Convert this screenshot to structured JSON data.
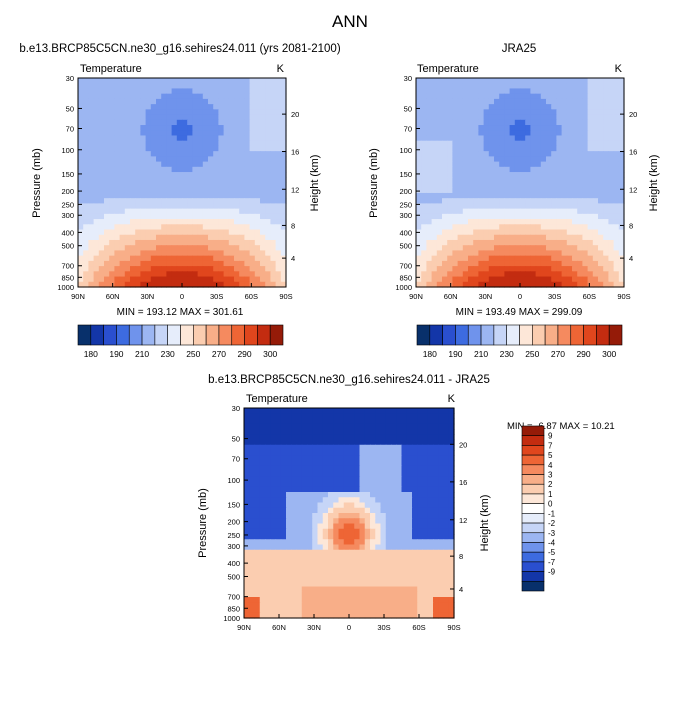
{
  "page_title": "ANN",
  "chart_data": [
    {
      "type": "heatmap",
      "title": "b.e13.BRCP85C5CN.ne30_g16.sehires24.011 (yrs 2081-2100)",
      "variable": "Temperature",
      "units": "K",
      "xlabel": "",
      "ylabel": "Pressure (mb)",
      "y2label": "Height (km)",
      "x_ticks": [
        "90N",
        "60N",
        "30N",
        "0",
        "30S",
        "60S",
        "90S"
      ],
      "x_range": [
        90,
        -90
      ],
      "pressure_ticks": [
        30,
        50,
        70,
        100,
        150,
        200,
        250,
        300,
        400,
        500,
        700,
        850,
        1000
      ],
      "height_ticks": [
        4,
        8,
        12,
        16,
        20
      ],
      "stats": "MIN = 193.12  MAX = 301.61",
      "colorbar_labels": [
        "180",
        "190",
        "210",
        "230",
        "250",
        "270",
        "290",
        "300"
      ],
      "colorbar_colors": [
        "#08306b",
        "#1336a8",
        "#2a4fcf",
        "#3d6be0",
        "#6f93ec",
        "#9cb6f2",
        "#c6d5f7",
        "#e6edfb",
        "#fde7d8",
        "#fbcdb0",
        "#f8ae88",
        "#f58a5f",
        "#ee6535",
        "#e0461d",
        "#c32c10",
        "#951b08"
      ],
      "field_colors": [
        "#1336a8",
        "#3d6be0",
        "#6f93ec",
        "#9cb6f2",
        "#c6d5f7",
        "#e6edfb",
        "#fde7d8",
        "#fbcdb0",
        "#f8ae88",
        "#f58a5f",
        "#ee6535",
        "#e0461d",
        "#c32c10"
      ]
    },
    {
      "type": "heatmap",
      "title": "JRA25",
      "variable": "Temperature",
      "units": "K",
      "xlabel": "",
      "ylabel": "Pressure (mb)",
      "y2label": "Height (km)",
      "x_ticks": [
        "90N",
        "60N",
        "30N",
        "0",
        "30S",
        "60S",
        "90S"
      ],
      "x_range": [
        90,
        -90
      ],
      "pressure_ticks": [
        30,
        50,
        70,
        100,
        150,
        200,
        250,
        300,
        400,
        500,
        700,
        850,
        1000
      ],
      "height_ticks": [
        4,
        8,
        12,
        16,
        20
      ],
      "stats": "MIN = 193.49  MAX = 299.09",
      "colorbar_labels": [
        "180",
        "190",
        "210",
        "230",
        "250",
        "270",
        "290",
        "300"
      ],
      "colorbar_colors": [
        "#08306b",
        "#1336a8",
        "#2a4fcf",
        "#3d6be0",
        "#6f93ec",
        "#9cb6f2",
        "#c6d5f7",
        "#e6edfb",
        "#fde7d8",
        "#fbcdb0",
        "#f8ae88",
        "#f58a5f",
        "#ee6535",
        "#e0461d",
        "#c32c10",
        "#951b08"
      ],
      "field_colors": [
        "#1336a8",
        "#3d6be0",
        "#6f93ec",
        "#9cb6f2",
        "#c6d5f7",
        "#e6edfb",
        "#fde7d8",
        "#fbcdb0",
        "#f8ae88",
        "#f58a5f",
        "#ee6535",
        "#e0461d",
        "#c32c10"
      ]
    },
    {
      "type": "heatmap",
      "title": "b.e13.BRCP85C5CN.ne30_g16.sehires24.011 - JRA25",
      "variable": "Temperature",
      "units": "K",
      "xlabel": "",
      "ylabel": "Pressure (mb)",
      "y2label": "Height (km)",
      "x_ticks": [
        "90N",
        "60N",
        "30N",
        "0",
        "30S",
        "60S",
        "90S"
      ],
      "x_range": [
        90,
        -90
      ],
      "pressure_ticks": [
        30,
        50,
        70,
        100,
        150,
        200,
        250,
        300,
        400,
        500,
        700,
        850,
        1000
      ],
      "height_ticks": [
        4,
        8,
        12,
        16,
        20
      ],
      "stats": "MIN =  -6.87  MAX =  10.21",
      "colorbar_labels": [
        "9",
        "7",
        "5",
        "4",
        "3",
        "2",
        "1",
        "0",
        "-1",
        "-2",
        "-3",
        "-4",
        "-5",
        "-7",
        "-9"
      ],
      "colorbar_colors": [
        "#951b08",
        "#c32c10",
        "#e0461d",
        "#ee6535",
        "#f58a5f",
        "#f8ae88",
        "#fbcdb0",
        "#fde7d8",
        "#ffffff",
        "#e6edfb",
        "#c6d5f7",
        "#9cb6f2",
        "#6f93ec",
        "#3d6be0",
        "#2a4fcf",
        "#1336a8",
        "#08306b"
      ],
      "field_colors": [
        "#1336a8",
        "#2a4fcf",
        "#6f93ec",
        "#9cb6f2",
        "#c6d5f7",
        "#fde7d8",
        "#fbcdb0",
        "#f8ae88",
        "#f58a5f",
        "#ee6535"
      ]
    }
  ]
}
